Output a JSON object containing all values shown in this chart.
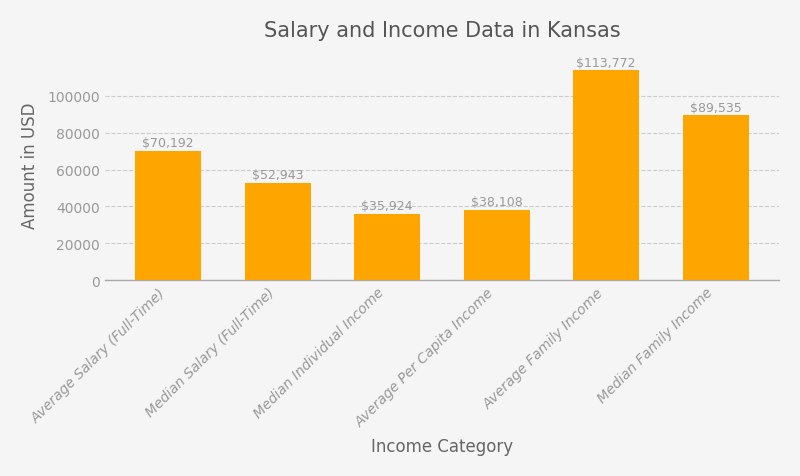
{
  "title": "Salary and Income Data in Kansas",
  "xlabel": "Income Category",
  "ylabel": "Amount in USD",
  "categories": [
    "Average Salary (Full-Time)",
    "Median Salary (Full-Time)",
    "Median Individual Income",
    "Average Per Capita Income",
    "Average Family Income",
    "Median Family Income"
  ],
  "values": [
    70192,
    52943,
    35924,
    38108,
    113772,
    89535
  ],
  "bar_color": "#FFA500",
  "label_color": "#999999",
  "title_color": "#555555",
  "axis_label_color": "#666666",
  "background_color": "#F5F5F5",
  "grid_color": "#CCCCCC",
  "ylim": [
    0,
    125000
  ],
  "yticks": [
    0,
    20000,
    40000,
    60000,
    80000,
    100000
  ],
  "title_fontsize": 15,
  "axis_label_fontsize": 12,
  "tick_fontsize": 10,
  "annotation_fontsize": 9,
  "bar_width": 0.6
}
